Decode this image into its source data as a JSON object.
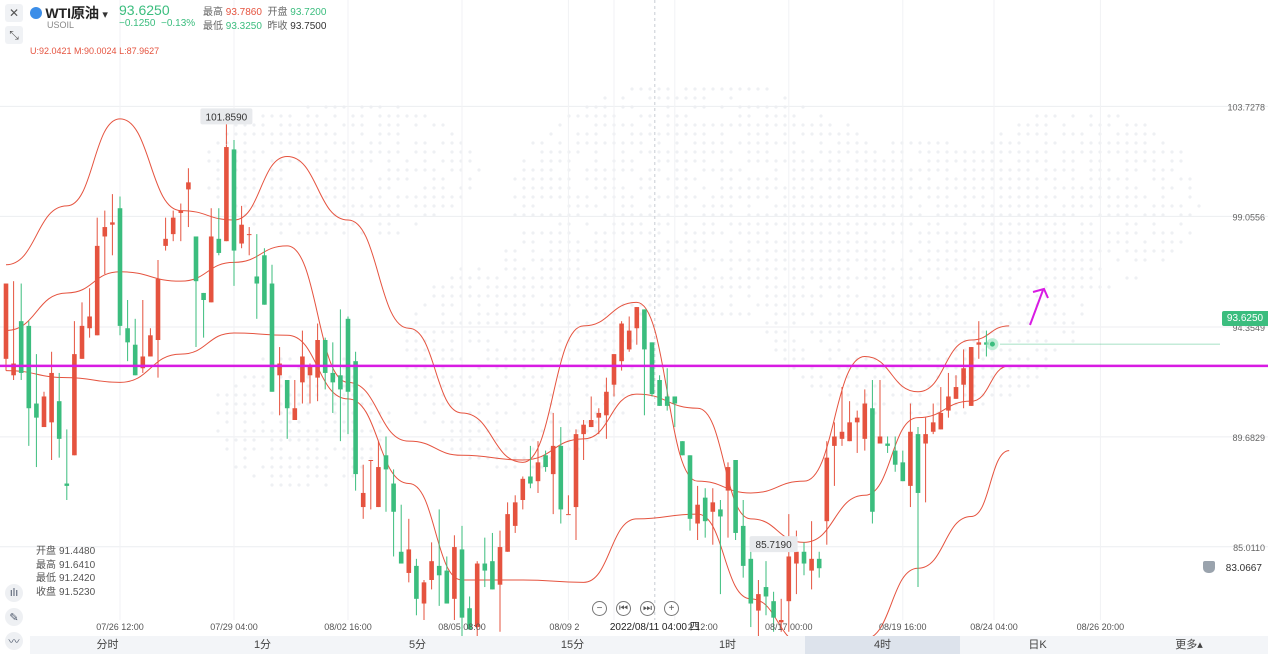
{
  "header": {
    "symbol": "WTI原油",
    "dropdown": "▾",
    "code": "USOIL",
    "price": "93.6250",
    "change": "−0.1250",
    "change_pct": "−0.13%",
    "high_label": "最高",
    "high": "93.7860",
    "open_label": "开盘",
    "open": "93.7200",
    "low_label": "最低",
    "low": "93.3250",
    "prev_close_label": "昨收",
    "prev_close": "93.7500",
    "bands_readout": "U:92.0421  M:90.0024  L:87.9627"
  },
  "info_box": {
    "open": {
      "label": "开盘",
      "value": "91.4480"
    },
    "high": {
      "label": "最高",
      "value": "91.6410"
    },
    "low": {
      "label": "最低",
      "value": "91.2420"
    },
    "close": {
      "label": "收盘",
      "value": "91.5230"
    }
  },
  "timeframes": {
    "items": [
      "分时",
      "1分",
      "5分",
      "15分",
      "1时",
      "4时",
      "日K"
    ],
    "active": "4时",
    "more": "更多▴"
  },
  "colors": {
    "up": "#e5533f",
    "down": "#3bbd7e",
    "band": "#e5533f",
    "support": "#d81be3",
    "last_price": "#3bbd7e"
  },
  "icons": [
    "close-icon",
    "collapse-icon",
    "indicator-icon",
    "pencil-icon",
    "chart-type-icon",
    "bell-icon",
    "zoom-out-icon",
    "rewind-icon",
    "forward-icon",
    "zoom-in-icon"
  ],
  "chart_data": {
    "type": "candlestick",
    "indicator": "Bollinger Bands",
    "bands_readout": {
      "U": 92.0421,
      "M": 90.0024,
      "L": 87.9627
    },
    "y_ticks": [
      "103.7278",
      "99.0556",
      "94.3549",
      "89.6829",
      "85.0110"
    ],
    "y_tick_values": [
      103.7278,
      99.0556,
      94.3549,
      89.6829,
      85.011
    ],
    "x_ticks": [
      "07/26 12:00",
      "07/29 04:00",
      "08/02 16:00",
      "08/05 08:00",
      "08/09 2",
      "08/11 04:00",
      "2 12:00",
      "08/17 00:00",
      "08/19 16:00",
      "08/24 04:00",
      "08/26 20:00"
    ],
    "crosshair_time": "2022/08/11 04:00 四",
    "ylim": [
      81.9,
      105.7
    ],
    "last_price": "93.6250",
    "last_price_value": 93.625,
    "support_level": 92.7,
    "annotations": {
      "max": "101.8590",
      "max_value": 101.859,
      "min": "85.7190",
      "min_value": 85.719
    },
    "bell_price": "83.0667",
    "candles": [
      [
        93.0,
        96.2,
        95.7,
        92.5
      ],
      [
        92.3,
        92.8,
        96.3,
        92.1
      ],
      [
        94.6,
        92.4,
        96.2,
        92.1
      ],
      [
        94.4,
        90.9,
        94.6,
        89.3
      ],
      [
        91.1,
        90.5,
        93.2,
        88.4
      ],
      [
        90.1,
        91.4,
        91.6,
        90.3
      ],
      [
        90.3,
        92.4,
        93.3,
        88.7
      ],
      [
        91.2,
        89.6,
        92.4,
        88.8
      ],
      [
        87.7,
        87.6,
        90.0,
        87.0
      ],
      [
        88.9,
        93.2,
        94.6,
        89.7
      ],
      [
        93.0,
        94.4,
        95.4,
        93.1
      ],
      [
        94.3,
        94.8,
        96.0,
        93.9
      ],
      [
        94.0,
        97.8,
        99.0,
        94.1
      ],
      [
        98.2,
        98.6,
        99.3,
        96.6
      ],
      [
        98.7,
        98.8,
        100.0,
        97.4
      ],
      [
        99.4,
        94.4,
        99.9,
        94.0
      ],
      [
        94.3,
        93.7,
        95.5,
        92.9
      ],
      [
        93.6,
        92.3,
        94.7,
        92.3
      ],
      [
        92.6,
        93.1,
        95.5,
        92.4
      ],
      [
        93.1,
        94.0,
        94.3,
        93.1
      ],
      [
        93.8,
        96.4,
        97.2,
        92.2
      ],
      [
        97.8,
        98.1,
        99.0,
        97.6
      ],
      [
        98.3,
        99.0,
        99.3,
        98.0
      ],
      [
        99.2,
        99.3,
        99.6,
        98.0
      ],
      [
        100.2,
        100.5,
        101.1,
        98.6
      ],
      [
        98.2,
        96.3,
        97.7,
        93.5
      ],
      [
        95.8,
        95.5,
        95.6,
        93.9
      ],
      [
        95.4,
        98.2,
        99.4,
        95.5
      ],
      [
        98.1,
        97.5,
        99.4,
        97.4
      ],
      [
        98.0,
        102.0,
        102.1,
        98.2
      ],
      [
        101.9,
        97.6,
        102.3,
        96.1
      ],
      [
        97.9,
        98.7,
        99.5,
        97.7
      ],
      [
        98.3,
        98.3,
        98.6,
        97.4
      ],
      [
        96.5,
        96.2,
        98.3,
        94.7
      ],
      [
        97.4,
        95.3,
        97.7,
        95.8
      ],
      [
        96.2,
        91.6,
        97.0,
        91.8
      ],
      [
        92.3,
        92.8,
        93.5,
        90.6
      ],
      [
        92.1,
        90.9,
        92.1,
        89.6
      ],
      [
        90.4,
        90.9,
        92.1,
        91.4
      ],
      [
        92.0,
        93.1,
        94.2,
        91.1
      ],
      [
        92.3,
        92.7,
        92.8,
        91.1
      ],
      [
        92.2,
        93.8,
        94.5,
        91.2
      ],
      [
        93.8,
        92.4,
        93.9,
        91.7
      ],
      [
        92.4,
        92.0,
        93.7,
        90.7
      ],
      [
        92.3,
        91.7,
        95.1,
        89.5
      ],
      [
        94.7,
        91.6,
        94.8,
        89.8
      ],
      [
        92.9,
        88.1,
        93.3,
        87.4
      ],
      [
        86.7,
        87.3,
        88.5,
        86.2
      ],
      [
        88.7,
        88.7,
        88.6,
        86.6
      ],
      [
        86.7,
        88.4,
        89.5,
        87.8
      ],
      [
        88.9,
        88.3,
        89.7,
        86.5
      ],
      [
        87.7,
        86.5,
        88.3,
        84.6
      ],
      [
        84.8,
        84.3,
        86.8,
        84.3
      ],
      [
        83.9,
        84.9,
        86.2,
        83.5
      ],
      [
        84.2,
        82.8,
        84.5,
        82.1
      ],
      [
        82.6,
        83.5,
        83.6,
        81.9
      ],
      [
        83.6,
        84.4,
        85.2,
        83.2
      ],
      [
        84.2,
        83.8,
        86.6,
        82.5
      ],
      [
        84.0,
        82.6,
        84.6,
        82.6
      ],
      [
        82.8,
        85.0,
        85.5,
        81.9
      ],
      [
        84.9,
        82.0,
        85.9,
        81.2
      ],
      [
        82.4,
        81.5,
        82.9,
        81.5
      ],
      [
        81.6,
        84.3,
        84.4,
        80.5
      ],
      [
        84.3,
        84.0,
        85.4,
        83.3
      ],
      [
        84.4,
        83.2,
        85.6,
        83.6
      ],
      [
        83.4,
        85.0,
        85.7,
        81.4
      ],
      [
        84.8,
        86.4,
        86.9,
        85.1
      ],
      [
        85.9,
        86.9,
        87.2,
        85.6
      ],
      [
        87.0,
        87.9,
        88.0,
        86.6
      ],
      [
        88.0,
        87.7,
        89.3,
        87.5
      ],
      [
        87.8,
        88.6,
        89.5,
        87.3
      ],
      [
        88.9,
        88.4,
        89.1,
        88.2
      ],
      [
        88.1,
        89.3,
        90.7,
        86.4
      ],
      [
        89.3,
        86.6,
        90.1,
        86.0
      ],
      [
        86.4,
        86.4,
        87.2,
        86.5
      ],
      [
        86.7,
        89.8,
        90.0,
        85.3
      ],
      [
        89.8,
        90.2,
        90.4,
        88.7
      ],
      [
        90.1,
        90.4,
        91.4,
        90.1
      ],
      [
        90.5,
        90.7,
        90.9,
        89.8
      ],
      [
        90.6,
        91.6,
        92.2,
        89.6
      ],
      [
        91.9,
        93.2,
        93.2,
        91.4
      ],
      [
        92.9,
        94.5,
        94.6,
        92.5
      ],
      [
        93.4,
        94.2,
        94.8,
        93.3
      ],
      [
        94.3,
        95.2,
        95.2,
        93.6
      ],
      [
        95.1,
        93.4,
        94.9,
        90.6
      ],
      [
        93.7,
        91.5,
        93.7,
        91.4
      ],
      [
        92.1,
        91.0,
        92.3,
        91.3
      ],
      [
        91.4,
        91.0,
        92.6,
        90.8
      ],
      [
        91.4,
        91.1,
        91.3,
        90.1
      ],
      [
        89.5,
        88.9,
        89.4,
        88.9
      ],
      [
        88.9,
        86.2,
        88.5,
        85.7
      ],
      [
        86.0,
        86.8,
        87.6,
        85.3
      ],
      [
        87.1,
        86.1,
        87.5,
        85.4
      ],
      [
        86.5,
        86.9,
        87.5,
        85.1
      ],
      [
        86.6,
        86.3,
        87.0,
        83.0
      ],
      [
        87.4,
        88.4,
        88.6,
        85.4
      ],
      [
        88.7,
        85.6,
        88.6,
        85.3
      ],
      [
        85.9,
        84.2,
        87.0,
        83.7
      ],
      [
        84.5,
        82.6,
        85.0,
        81.6
      ],
      [
        82.3,
        83.0,
        83.6,
        81.2
      ],
      [
        83.3,
        82.9,
        84.4,
        82.1
      ],
      [
        82.7,
        82.0,
        83.1,
        81.4
      ],
      [
        81.8,
        81.9,
        82.8,
        81.4
      ],
      [
        82.7,
        84.6,
        86.4,
        81.4
      ],
      [
        84.3,
        84.8,
        85.7,
        83.0
      ],
      [
        84.8,
        84.3,
        85.2,
        83.8
      ],
      [
        84.0,
        84.5,
        86.1,
        83.2
      ],
      [
        84.5,
        84.1,
        84.8,
        83.7
      ],
      [
        86.1,
        88.8,
        89.5,
        85.1
      ],
      [
        89.3,
        89.7,
        90.3,
        87.6
      ],
      [
        89.6,
        89.9,
        91.8,
        89.3
      ],
      [
        89.5,
        90.3,
        91.2,
        89.5
      ],
      [
        90.3,
        90.5,
        90.8,
        89.0
      ],
      [
        89.6,
        91.1,
        91.7,
        89.1
      ],
      [
        90.9,
        86.5,
        92.1,
        86.0
      ],
      [
        89.4,
        89.7,
        92.1,
        89.4
      ],
      [
        89.4,
        89.3,
        89.7,
        89.0
      ],
      [
        89.1,
        88.5,
        89.7,
        88.2
      ],
      [
        88.6,
        87.8,
        89.1,
        88.3
      ],
      [
        87.6,
        89.9,
        91.1,
        86.7
      ],
      [
        89.8,
        87.3,
        90.1,
        83.3
      ],
      [
        89.4,
        89.8,
        90.5,
        86.9
      ],
      [
        89.9,
        90.3,
        91.1,
        89.8
      ],
      [
        90.0,
        90.7,
        91.8,
        90.0
      ],
      [
        90.8,
        91.4,
        92.4,
        90.5
      ],
      [
        91.3,
        91.8,
        92.3,
        91.3
      ],
      [
        91.9,
        92.6,
        93.4,
        90.9
      ],
      [
        91.0,
        93.5,
        93.5,
        91.2
      ],
      [
        93.6,
        93.7,
        94.6,
        93.0
      ],
      [
        93.7,
        93.6,
        94.2,
        93.1
      ]
    ],
    "bands": {
      "upper": [
        [
          0,
          97.0
        ],
        [
          8,
          99.5
        ],
        [
          15,
          103.2
        ],
        [
          23,
          99.3
        ],
        [
          30,
          98.9
        ],
        [
          37,
          101.6
        ],
        [
          45,
          98.9
        ],
        [
          53,
          94.3
        ],
        [
          60,
          90.7
        ],
        [
          68,
          88.6
        ],
        [
          76,
          94.4
        ],
        [
          83,
          95.4
        ],
        [
          91,
          87.8
        ],
        [
          98,
          87.3
        ],
        [
          105,
          87.8
        ],
        [
          113,
          93.1
        ],
        [
          120,
          91.6
        ],
        [
          127,
          93.8
        ],
        [
          132,
          94.4
        ]
      ],
      "middle": [
        [
          0,
          94.2
        ],
        [
          8,
          95.8
        ],
        [
          15,
          96.7
        ],
        [
          23,
          96.3
        ],
        [
          30,
          97.1
        ],
        [
          37,
          97.8
        ],
        [
          45,
          92.0
        ],
        [
          53,
          89.5
        ],
        [
          60,
          88.9
        ],
        [
          68,
          88.7
        ],
        [
          76,
          89.6
        ],
        [
          83,
          91.5
        ],
        [
          91,
          90.9
        ],
        [
          98,
          86.2
        ],
        [
          105,
          85.2
        ],
        [
          113,
          87.2
        ],
        [
          120,
          90.5
        ],
        [
          127,
          91.2
        ],
        [
          132,
          92.7
        ]
      ],
      "lower": [
        [
          0,
          92.5
        ],
        [
          8,
          92.2
        ],
        [
          15,
          92.0
        ],
        [
          23,
          93.2
        ],
        [
          30,
          94.1
        ],
        [
          37,
          94.0
        ],
        [
          45,
          91.3
        ],
        [
          53,
          87.7
        ],
        [
          60,
          83.6
        ],
        [
          68,
          83.6
        ],
        [
          76,
          83.5
        ],
        [
          83,
          86.2
        ],
        [
          91,
          86.4
        ],
        [
          98,
          82.8
        ],
        [
          105,
          80.9
        ],
        [
          113,
          81.1
        ],
        [
          120,
          84.1
        ],
        [
          127,
          86.3
        ],
        [
          132,
          89.1
        ]
      ]
    }
  }
}
